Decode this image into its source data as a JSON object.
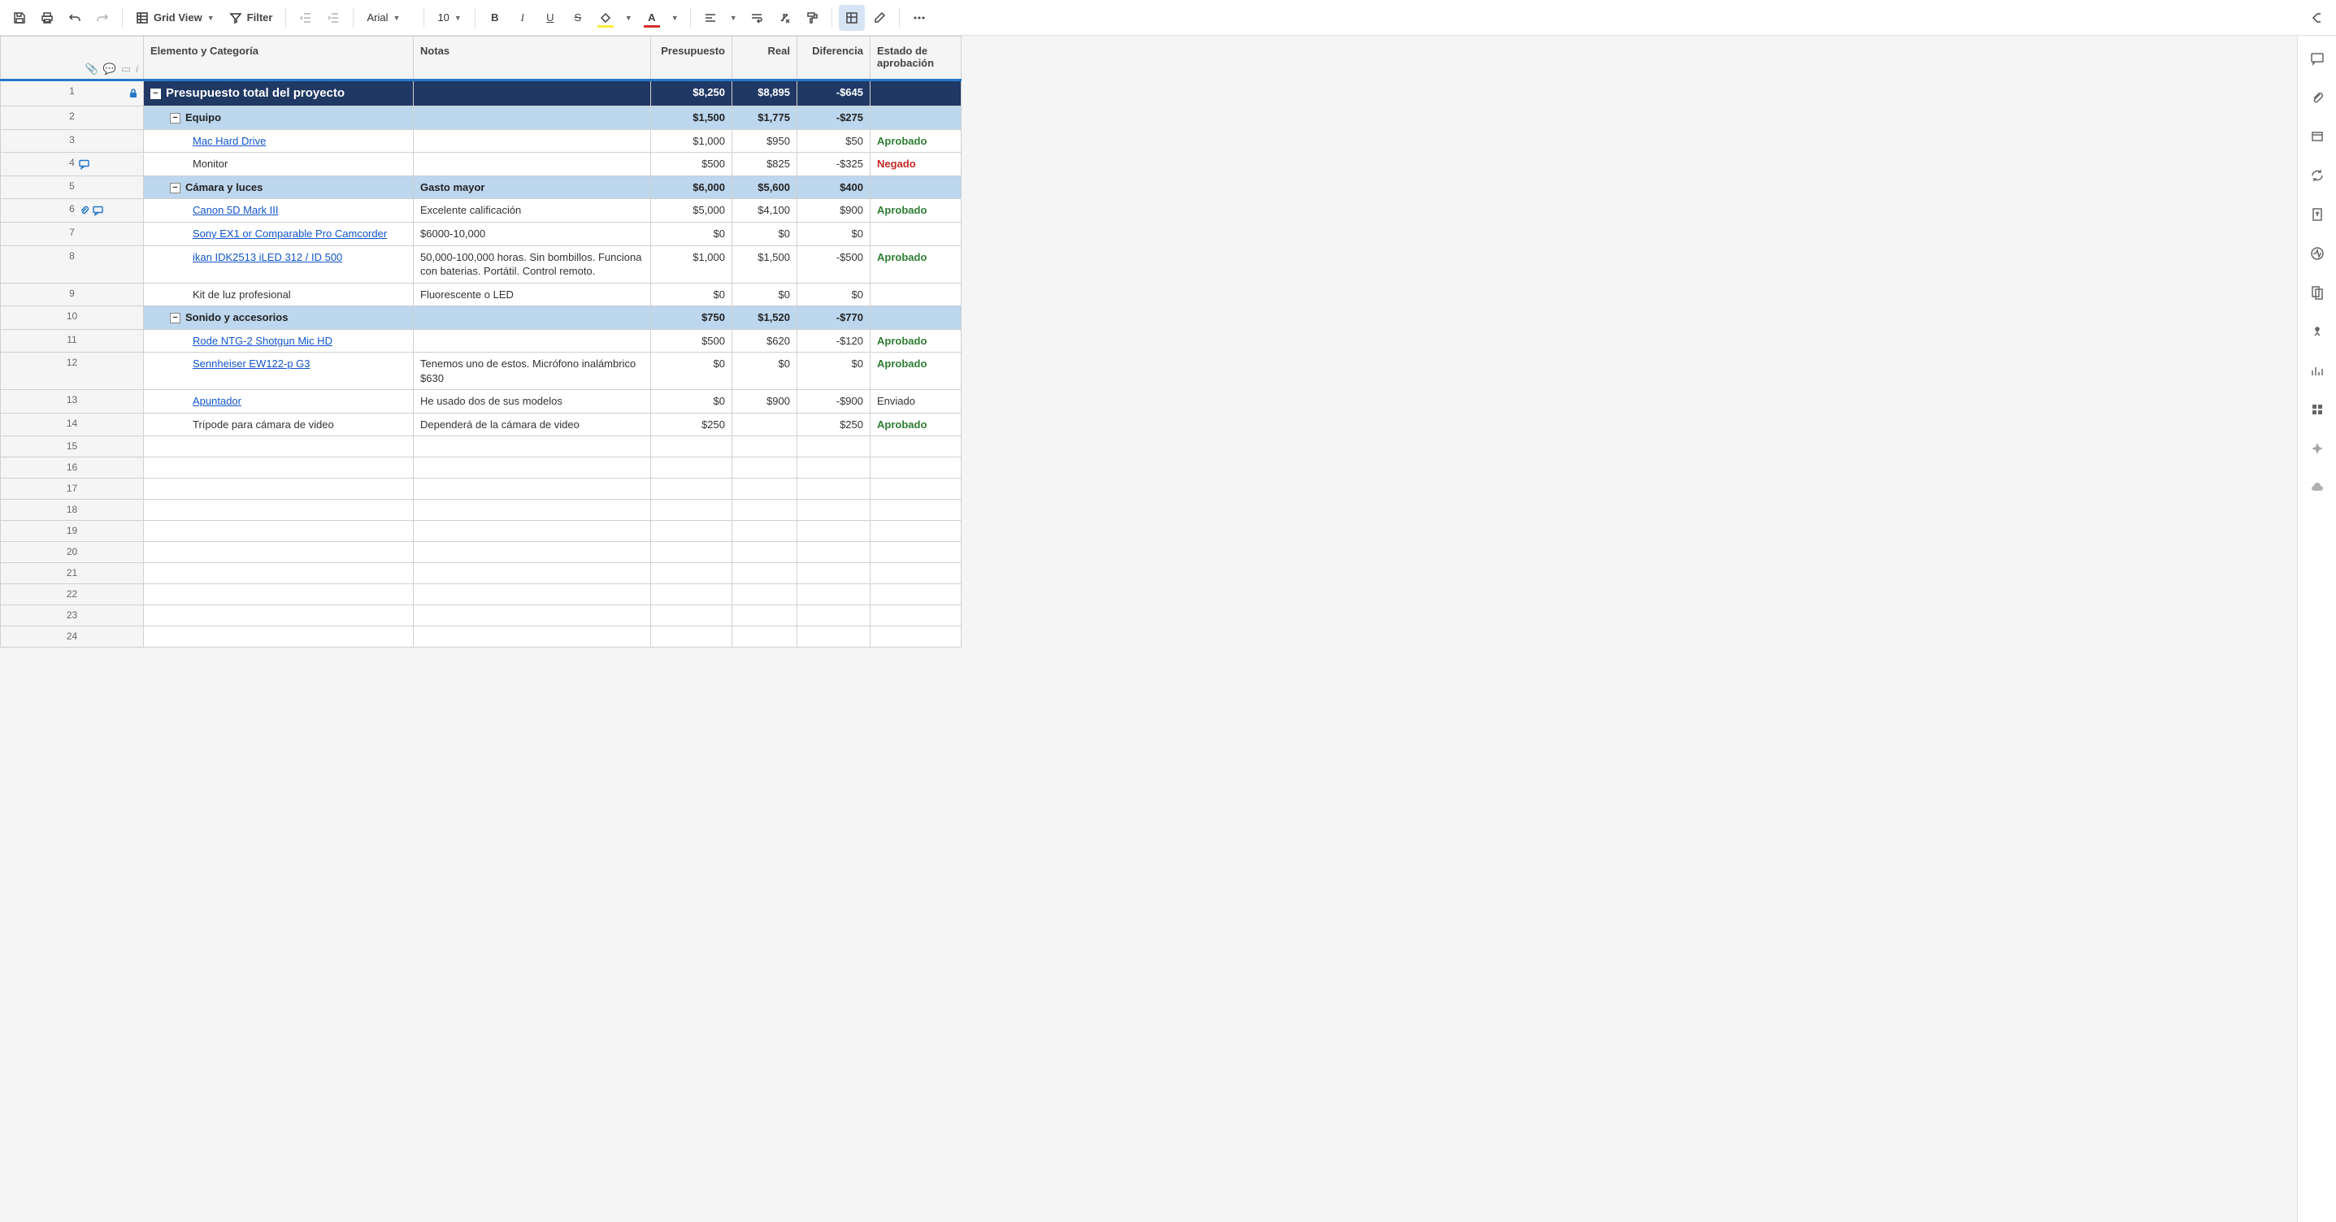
{
  "toolbar": {
    "view_label": "Grid View",
    "filter_label": "Filter",
    "font_family": "Arial",
    "font_size": "10"
  },
  "columns": {
    "primary": "Elemento y Categoría",
    "notes": "Notas",
    "budget": "Presupuesto",
    "actual": "Real",
    "diff": "Diferencia",
    "status": "Estado de aprobación"
  },
  "status_labels": {
    "approved": "Aprobado",
    "denied": "Negado",
    "sent": "Enviado"
  },
  "rows": [
    {
      "num": "1",
      "type": "total",
      "label": "Presupuesto total del proyecto",
      "notes": "",
      "budget": "$8,250",
      "actual": "$8,895",
      "diff": "-$645",
      "status": "",
      "lock": true
    },
    {
      "num": "2",
      "type": "cat",
      "label": "Equipo",
      "notes": "",
      "budget": "$1,500",
      "actual": "$1,775",
      "diff": "-$275",
      "status": ""
    },
    {
      "num": "3",
      "type": "item",
      "label": "Mac Hard Drive",
      "link": true,
      "notes": "",
      "budget": "$1,000",
      "actual": "$950",
      "diff": "$50",
      "status": "approved"
    },
    {
      "num": "4",
      "type": "item",
      "label": "Monitor",
      "notes": "",
      "budget": "$500",
      "actual": "$825",
      "diff": "-$325",
      "status": "denied",
      "comment": true
    },
    {
      "num": "5",
      "type": "cat",
      "label": "Cámara y luces",
      "notes": "Gasto mayor",
      "budget": "$6,000",
      "actual": "$5,600",
      "diff": "$400",
      "status": ""
    },
    {
      "num": "6",
      "type": "item",
      "label": "Canon 5D Mark III",
      "link": true,
      "notes": "Excelente calificación",
      "budget": "$5,000",
      "actual": "$4,100",
      "diff": "$900",
      "status": "approved",
      "comment": true,
      "attach": true
    },
    {
      "num": "7",
      "type": "item",
      "label": "Sony EX1 or Comparable Pro Camcorder",
      "link": true,
      "notes": "$6000-10,000",
      "budget": "$0",
      "actual": "$0",
      "diff": "$0",
      "status": ""
    },
    {
      "num": "8",
      "type": "item",
      "label": "ikan IDK2513 iLED 312 / ID 500",
      "link": true,
      "notes": "50,000-100,000 horas. Sin bombillos. Funciona con baterias. Portátil. Control remoto.",
      "budget": "$1,000",
      "actual": "$1,500",
      "diff": "-$500",
      "status": "approved"
    },
    {
      "num": "9",
      "type": "item",
      "label": "Kit de luz profesional",
      "notes": "Fluorescente o LED",
      "budget": "$0",
      "actual": "$0",
      "diff": "$0",
      "status": ""
    },
    {
      "num": "10",
      "type": "cat",
      "label": "Sonido y accesorios",
      "notes": "",
      "budget": "$750",
      "actual": "$1,520",
      "diff": "-$770",
      "status": ""
    },
    {
      "num": "11",
      "type": "item",
      "label": "Rode NTG-2 Shotgun Mic HD",
      "link": true,
      "notes": "",
      "budget": "$500",
      "actual": "$620",
      "diff": "-$120",
      "status": "approved"
    },
    {
      "num": "12",
      "type": "item",
      "label": "Sennheiser EW122-p G3",
      "link": true,
      "notes": "Tenemos uno de estos. Micrófono inalámbrico $630",
      "budget": "$0",
      "actual": "$0",
      "diff": "$0",
      "status": "approved"
    },
    {
      "num": "13",
      "type": "item",
      "label": "Apuntador",
      "link": true,
      "notes": "He usado dos de sus modelos",
      "budget": "$0",
      "actual": "$900",
      "diff": "-$900",
      "status": "sent"
    },
    {
      "num": "14",
      "type": "item",
      "label": "Trípode para cámara de video",
      "notes": "Dependerá de la cámara de video",
      "budget": "$250",
      "actual": "",
      "diff": "$250",
      "status": "approved"
    },
    {
      "num": "15",
      "type": "empty"
    },
    {
      "num": "16",
      "type": "empty"
    },
    {
      "num": "17",
      "type": "empty"
    },
    {
      "num": "18",
      "type": "empty"
    },
    {
      "num": "19",
      "type": "empty"
    },
    {
      "num": "20",
      "type": "empty"
    },
    {
      "num": "21",
      "type": "empty"
    },
    {
      "num": "22",
      "type": "empty"
    },
    {
      "num": "23",
      "type": "empty"
    },
    {
      "num": "24",
      "type": "empty"
    }
  ],
  "colors": {
    "total_bg": "#1f3864",
    "cat_bg": "#bdd7ee",
    "approved": "#2e7d32",
    "denied": "#c62828",
    "link": "#1155cc",
    "accent": "#2877c9"
  }
}
